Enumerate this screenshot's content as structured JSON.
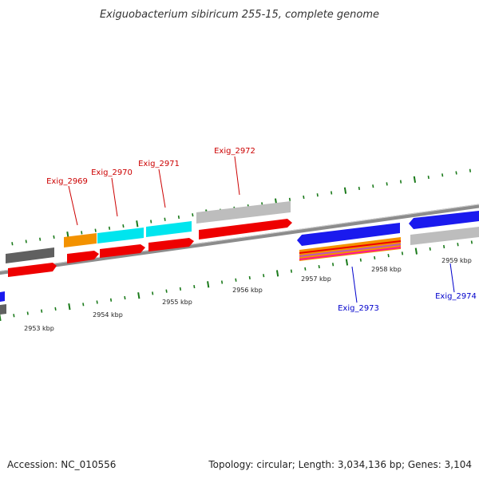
{
  "title": "Exiguobacterium sibiricum 255-15, complete genome",
  "footer": {
    "accession": "Accession: NC_010556",
    "summary": "Topology: circular; Length: 3,034,136 bp; Genes: 3,104"
  },
  "colors": {
    "backbone": "#8c8c8c",
    "tick": "#1a7a1a",
    "forward_label": "#cc0000",
    "reverse_label": "#0000cc"
  },
  "ticks": [
    "2953 kbp",
    "2954 kbp",
    "2955 kbp",
    "2956 kbp",
    "2957 kbp",
    "2958 kbp",
    "2959 kbp"
  ],
  "genes": [
    {
      "label": "Exiguobacterium_2969",
      "strand": "+",
      "display": "Exig_2969"
    },
    {
      "label": "Exiguobacterium_2970",
      "strand": "+",
      "display": "Exig_2970"
    },
    {
      "label": "Exiguobacterium_2971",
      "strand": "+",
      "display": "Exig_2971"
    },
    {
      "label": "Exiguobacterium_2972",
      "strand": "+",
      "display": "Exig_2972"
    },
    {
      "label": "Exiguobacterium_2973",
      "strand": "-",
      "display": "Exig_2973"
    },
    {
      "label": "Exiguobacterium_2974",
      "strand": "-",
      "display": "Exig_2974"
    }
  ]
}
